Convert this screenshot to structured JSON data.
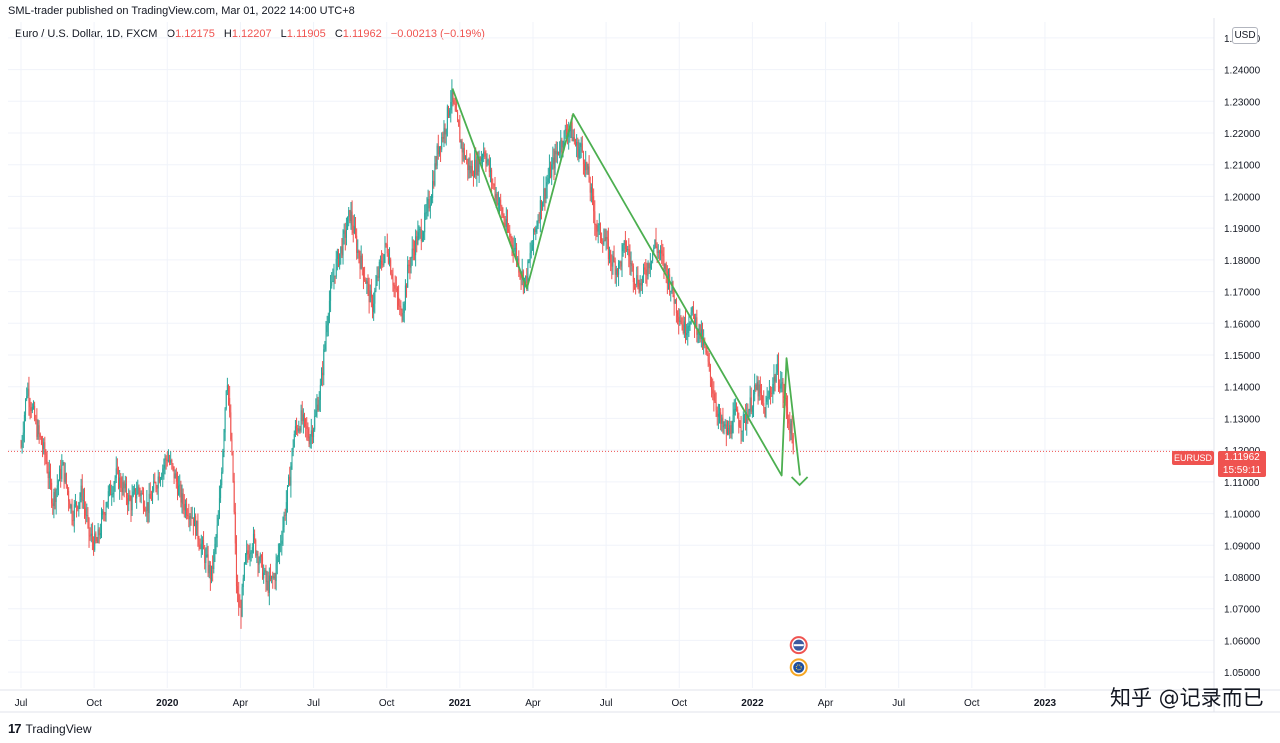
{
  "header": {
    "publish_line": "SML-trader published on TradingView.com, Mar 01, 2022 14:00 UTC+8",
    "symbol": "Euro / U.S. Dollar, 1D, FXCM",
    "o_label": "O",
    "o_value": "1.12175",
    "h_label": "H",
    "h_value": "1.12207",
    "l_label": "L",
    "l_value": "1.11905",
    "c_label": "C",
    "c_value": "1.11962",
    "change": "−0.00213 (−0.19%)"
  },
  "currency_button": "USD",
  "price_label": {
    "symbol": "EURUSD",
    "price": "1.11962",
    "countdown": "15:59:11"
  },
  "footer": {
    "brand_logo": "17",
    "brand": "TradingView"
  },
  "watermark": "知乎 @记录而已",
  "colors": {
    "up": "#26a69a",
    "down": "#ef5350",
    "pattern": "#4caf50",
    "grid": "#f0f3fa"
  },
  "chart_data": {
    "type": "candlestick",
    "title": "",
    "ylim": [
      1.045,
      1.255
    ],
    "yticks": [
      "1.05000",
      "1.06000",
      "1.07000",
      "1.08000",
      "1.09000",
      "1.10000",
      "1.11000",
      "1.12000",
      "1.13000",
      "1.14000",
      "1.15000",
      "1.16000",
      "1.17000",
      "1.18000",
      "1.19000",
      "1.20000",
      "1.21000",
      "1.22000",
      "1.23000",
      "1.24000",
      "1.25000"
    ],
    "ytick_values": [
      1.05,
      1.06,
      1.07,
      1.08,
      1.09,
      1.1,
      1.11,
      1.12,
      1.13,
      1.14,
      1.15,
      1.16,
      1.17,
      1.18,
      1.19,
      1.2,
      1.21,
      1.22,
      1.23,
      1.24,
      1.25
    ],
    "xticks": [
      "Jul",
      "Oct",
      "2020",
      "Apr",
      "Jul",
      "Oct",
      "2021",
      "Apr",
      "Jul",
      "Oct",
      "2022",
      "Apr",
      "Jul",
      "Oct",
      "2023"
    ],
    "xtick_months": [
      0,
      3,
      6,
      9,
      12,
      15,
      18,
      21,
      24,
      27,
      30,
      33,
      36,
      39,
      42
    ],
    "xtick_bold": [
      false,
      false,
      true,
      false,
      false,
      false,
      true,
      false,
      false,
      false,
      true,
      false,
      false,
      false,
      true
    ],
    "current_price": 1.11962,
    "price_path": [
      [
        0,
        1.121
      ],
      [
        0.25,
        1.14
      ],
      [
        0.6,
        1.128
      ],
      [
        1.0,
        1.118
      ],
      [
        1.3,
        1.104
      ],
      [
        1.7,
        1.115
      ],
      [
        2.1,
        1.1
      ],
      [
        2.5,
        1.107
      ],
      [
        2.8,
        1.093
      ],
      [
        3.1,
        1.09
      ],
      [
        3.5,
        1.104
      ],
      [
        3.9,
        1.112
      ],
      [
        4.2,
        1.108
      ],
      [
        4.5,
        1.103
      ],
      [
        4.8,
        1.108
      ],
      [
        5.2,
        1.102
      ],
      [
        5.6,
        1.111
      ],
      [
        6.0,
        1.118
      ],
      [
        6.3,
        1.112
      ],
      [
        6.6,
        1.104
      ],
      [
        7.0,
        1.1
      ],
      [
        7.4,
        1.09
      ],
      [
        7.8,
        1.08
      ],
      [
        8.1,
        1.098
      ],
      [
        8.3,
        1.124
      ],
      [
        8.45,
        1.145
      ],
      [
        8.7,
        1.11
      ],
      [
        8.85,
        1.075
      ],
      [
        9.0,
        1.068
      ],
      [
        9.2,
        1.085
      ],
      [
        9.5,
        1.092
      ],
      [
        9.8,
        1.085
      ],
      [
        10.1,
        1.077
      ],
      [
        10.4,
        1.08
      ],
      [
        10.7,
        1.094
      ],
      [
        11.0,
        1.11
      ],
      [
        11.2,
        1.125
      ],
      [
        11.5,
        1.13
      ],
      [
        11.8,
        1.124
      ],
      [
        12.0,
        1.128
      ],
      [
        12.3,
        1.14
      ],
      [
        12.6,
        1.165
      ],
      [
        12.9,
        1.178
      ],
      [
        13.2,
        1.185
      ],
      [
        13.5,
        1.195
      ],
      [
        13.8,
        1.183
      ],
      [
        14.1,
        1.175
      ],
      [
        14.4,
        1.165
      ],
      [
        14.7,
        1.177
      ],
      [
        15.0,
        1.185
      ],
      [
        15.3,
        1.172
      ],
      [
        15.6,
        1.162
      ],
      [
        15.9,
        1.178
      ],
      [
        16.2,
        1.186
      ],
      [
        16.5,
        1.19
      ],
      [
        16.8,
        1.2
      ],
      [
        17.1,
        1.215
      ],
      [
        17.4,
        1.222
      ],
      [
        17.65,
        1.232
      ],
      [
        17.8,
        1.226
      ],
      [
        18.1,
        1.215
      ],
      [
        18.4,
        1.208
      ],
      [
        18.7,
        1.21
      ],
      [
        19.0,
        1.215
      ],
      [
        19.3,
        1.205
      ],
      [
        19.6,
        1.198
      ],
      [
        19.9,
        1.19
      ],
      [
        20.2,
        1.185
      ],
      [
        20.5,
        1.176
      ],
      [
        20.7,
        1.173
      ],
      [
        21.0,
        1.186
      ],
      [
        21.3,
        1.197
      ],
      [
        21.6,
        1.205
      ],
      [
        21.9,
        1.212
      ],
      [
        22.2,
        1.218
      ],
      [
        22.5,
        1.222
      ],
      [
        22.8,
        1.215
      ],
      [
        23.0,
        1.215
      ],
      [
        23.3,
        1.205
      ],
      [
        23.6,
        1.19
      ],
      [
        23.9,
        1.187
      ],
      [
        24.2,
        1.18
      ],
      [
        24.5,
        1.177
      ],
      [
        24.8,
        1.185
      ],
      [
        25.1,
        1.176
      ],
      [
        25.4,
        1.172
      ],
      [
        25.7,
        1.178
      ],
      [
        26.0,
        1.185
      ],
      [
        26.3,
        1.18
      ],
      [
        26.6,
        1.173
      ],
      [
        26.9,
        1.165
      ],
      [
        27.2,
        1.158
      ],
      [
        27.5,
        1.163
      ],
      [
        27.8,
        1.158
      ],
      [
        28.1,
        1.15
      ],
      [
        28.4,
        1.138
      ],
      [
        28.7,
        1.128
      ],
      [
        29.0,
        1.125
      ],
      [
        29.3,
        1.131
      ],
      [
        29.6,
        1.128
      ],
      [
        29.9,
        1.134
      ],
      [
        30.2,
        1.14
      ],
      [
        30.5,
        1.132
      ],
      [
        30.7,
        1.138
      ],
      [
        31.0,
        1.145
      ],
      [
        31.2,
        1.14
      ],
      [
        31.45,
        1.131
      ],
      [
        31.7,
        1.122
      ]
    ],
    "pattern_lines": [
      [
        [
          17.7,
          1.234
        ],
        [
          20.75,
          1.171
        ],
        [
          22.65,
          1.226
        ],
        [
          31.2,
          1.112
        ],
        [
          31.4,
          1.149
        ],
        [
          31.95,
          1.112
        ]
      ]
    ],
    "arrow_tip": [
      32.1,
      1.109
    ],
    "markers": [
      {
        "name": "us-flag-icon",
        "month": 31.9,
        "price": 1.0585
      },
      {
        "name": "eu-flag-icon",
        "month": 31.9,
        "price": 1.0515
      }
    ]
  }
}
